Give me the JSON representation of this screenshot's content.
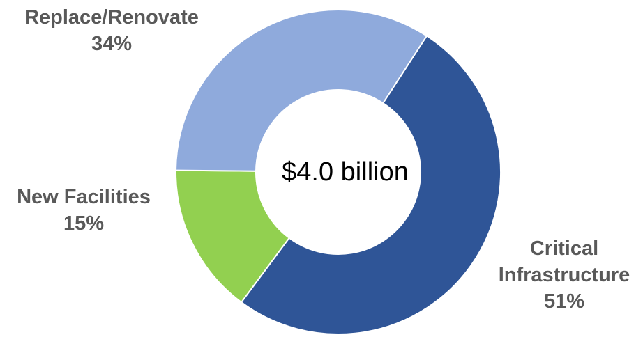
{
  "chart_data": {
    "type": "pie",
    "center_label": "$4.0 billion",
    "slices": [
      {
        "name": "Critical Infrastructure",
        "label_lines": [
          "Critical",
          "Infrastructure"
        ],
        "percent_label": "51%",
        "value": 51,
        "color": "#2F5597"
      },
      {
        "name": "New Facilities",
        "label_lines": [
          "New Facilities"
        ],
        "percent_label": "15%",
        "value": 15,
        "color": "#92D050"
      },
      {
        "name": "Replace/Renovate",
        "label_lines": [
          "Replace/Renovate"
        ],
        "percent_label": "34%",
        "value": 34,
        "color": "#8FAADC"
      }
    ]
  }
}
